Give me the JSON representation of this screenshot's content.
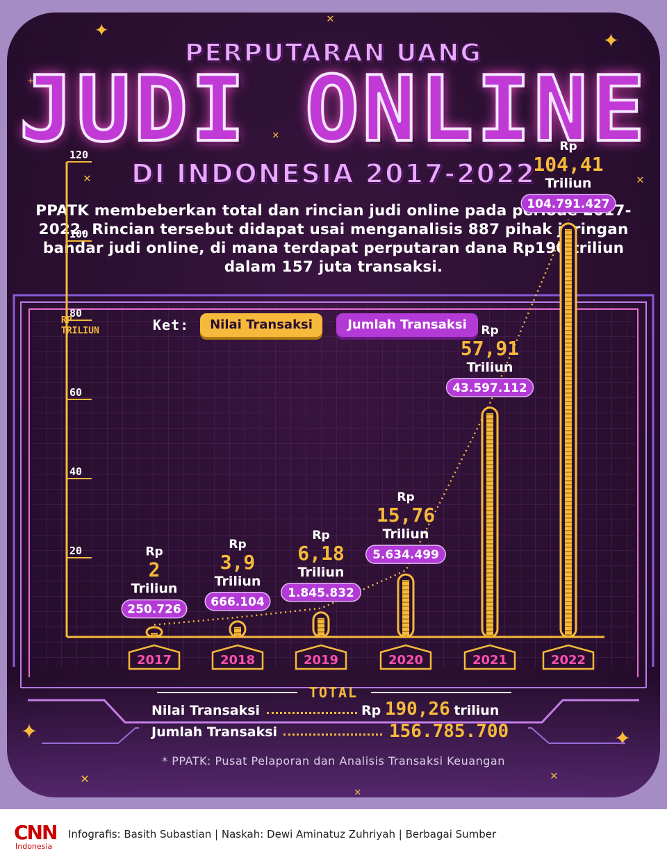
{
  "title": {
    "top": "PERPUTARAN UANG",
    "main": "JUDI ONLINE",
    "sub": "DI INDONESIA 2017-2022"
  },
  "intro": "PPATK membeberkan total dan rincian judi online pada periode 2017-2022. Rincian tersebut didapat usai menganalisis 887 pihak jaringan bandar judi online, di mana terdapat perputaran dana Rp190 triliun dalam 157 juta transaksi.",
  "legend": {
    "label": "Ket:",
    "value_label": "Nilai Transaksi",
    "count_label": "Jumlah Transaksi"
  },
  "colors": {
    "accent_yellow": "#f6b93b",
    "accent_purple": "#b33ad6",
    "background": "#2a0f30",
    "year_label": "#ff4fb0"
  },
  "chart_data": {
    "type": "bar",
    "ylabel_line1": "RP",
    "ylabel_line2": "TRILIUN",
    "ylim": [
      0,
      120
    ],
    "yticks": [
      20,
      40,
      60,
      80,
      100,
      120
    ],
    "categories": [
      "2017",
      "2018",
      "2019",
      "2020",
      "2021",
      "2022"
    ],
    "values": [
      2,
      3.9,
      6.18,
      15.76,
      57.91,
      104.41
    ],
    "value_labels": [
      "2",
      "3,9",
      "6,18",
      "15,76",
      "57,91",
      "104,41"
    ],
    "value_prefix": "Rp",
    "value_unit": "Triliun",
    "transactions": [
      250726,
      666104,
      1845832,
      5634499,
      43597112,
      104791427
    ],
    "transaction_labels": [
      "250.726",
      "666.104",
      "1.845.832",
      "5.634.499",
      "43.597.112",
      "104.791.427"
    ],
    "grid": true,
    "legend_position": "top"
  },
  "totals": {
    "title": "TOTAL",
    "value_row_label": "Nilai Transaksi",
    "value_prefix": "Rp",
    "value_number": "190,26",
    "value_unit": "triliun",
    "count_row_label": "Jumlah Transaksi",
    "count_number": "156.785.700"
  },
  "footnote": "* PPATK: Pusat Pelaporan dan Analisis Transaksi Keuangan",
  "footer": {
    "logo": "CNN",
    "logo_sub": "Indonesia",
    "credits": "Infografis: Basith Subastian | Naskah: Dewi Aminatuz Zuhriyah | Berbagai Sumber"
  }
}
